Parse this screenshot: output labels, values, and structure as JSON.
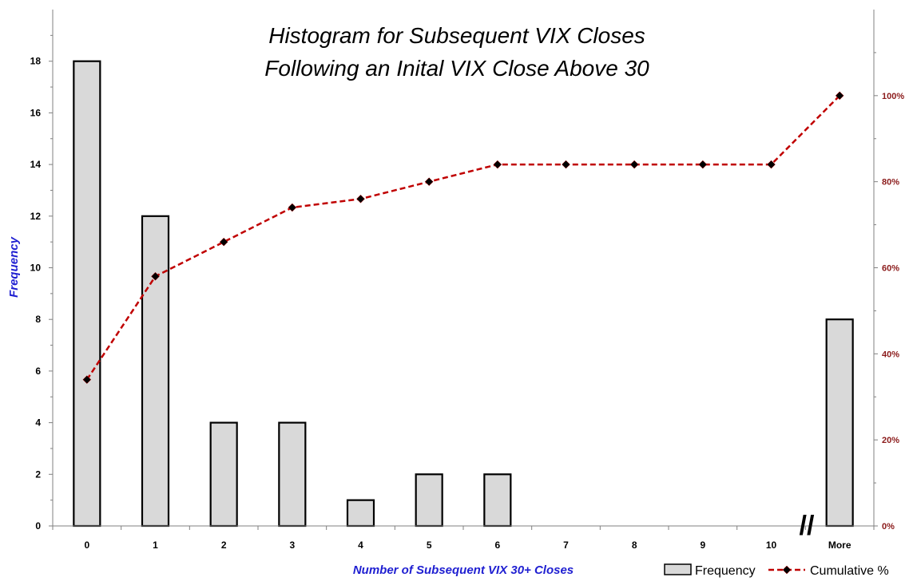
{
  "chart_data": {
    "type": "bar",
    "title": [
      "Histogram for Subsequent VIX Closes",
      "Following an Inital VIX Close Above 30"
    ],
    "xlabel": "Number of Subsequent VIX 30+ Closes",
    "ylabel": "Frequency",
    "categories": [
      "0",
      "1",
      "2",
      "3",
      "4",
      "5",
      "6",
      "7",
      "8",
      "9",
      "10",
      "More"
    ],
    "series": [
      {
        "name": "Frequency",
        "type": "bar",
        "axis": "left",
        "values": [
          18,
          12,
          4,
          4,
          1,
          2,
          2,
          0,
          0,
          0,
          0,
          8
        ],
        "color": "#d9d9d9"
      },
      {
        "name": "Cumulative %",
        "type": "line",
        "axis": "right",
        "values": [
          34,
          58,
          66,
          74,
          76,
          80,
          84,
          84,
          84,
          84,
          84,
          100
        ],
        "color": "#c00000"
      }
    ],
    "ylim": [
      0,
      20
    ],
    "y_ticks": [
      "0",
      "2",
      "4",
      "6",
      "8",
      "10",
      "12",
      "14",
      "16",
      "18"
    ],
    "y2lim": [
      0,
      120
    ],
    "y2_ticks": [
      "0%",
      "20%",
      "40%",
      "60%",
      "80%",
      "100%"
    ],
    "axis_break": "//",
    "legend_position": "bottom-right",
    "grid": false
  }
}
